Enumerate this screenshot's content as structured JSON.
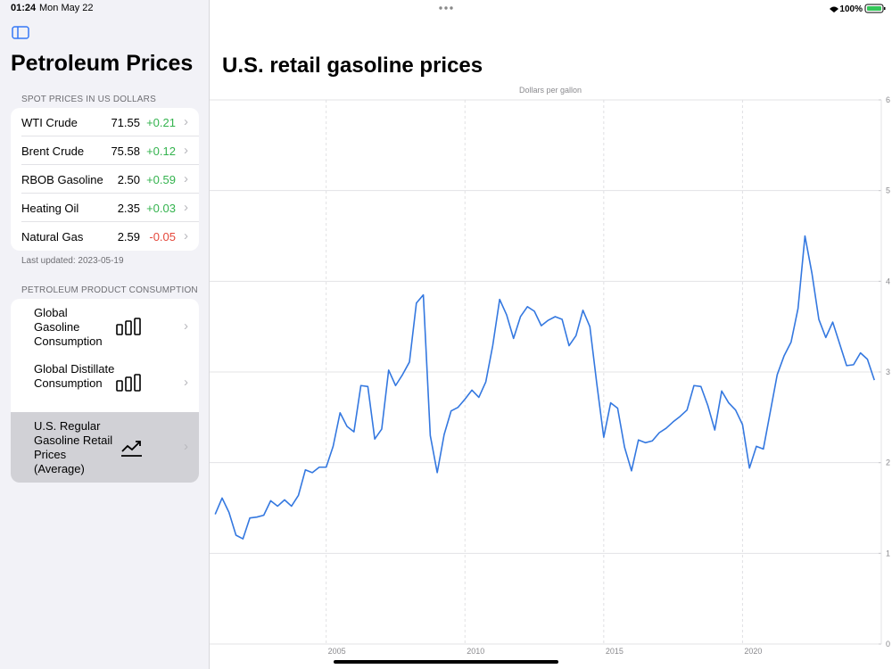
{
  "status_bar": {
    "time": "01:24",
    "date": "Mon May 22",
    "battery": "100%"
  },
  "sidebar": {
    "title": "Petroleum Prices",
    "spot_header": "SPOT PRICES IN US DOLLARS",
    "spot_prices": [
      {
        "name": "WTI Crude",
        "price": "71.55",
        "change": "+0.21"
      },
      {
        "name": "Brent Crude",
        "price": "75.58",
        "change": "+0.12"
      },
      {
        "name": "RBOB Gasoline",
        "price": "2.50",
        "change": "+0.59"
      },
      {
        "name": "Heating Oil",
        "price": "2.35",
        "change": "+0.03"
      },
      {
        "name": "Natural Gas",
        "price": "2.59",
        "change": "-0.05"
      }
    ],
    "last_updated": "Last updated: 2023-05-19",
    "consumption_header": "PETROLEUM PRODUCT CONSUMPTION",
    "consumption_items": [
      {
        "label": "Global Gasoline Consumption"
      },
      {
        "label": "Global Distillate Consumption"
      },
      {
        "label": "U.S. Regular Gasoline Retail Prices (Average)"
      }
    ]
  },
  "chart_data": {
    "type": "line",
    "title": "U.S. retail gasoline prices",
    "y_label": "Dollars per gallon",
    "color": "#3478e0",
    "grid": true,
    "xlim": [
      2000.8,
      2025
    ],
    "xticks": [
      2005,
      2010,
      2015,
      2020
    ],
    "ylim": [
      0,
      6
    ],
    "yticks": [
      0,
      1,
      2,
      3,
      4,
      5,
      6
    ],
    "x": [
      2001,
      2001.25,
      2001.5,
      2001.75,
      2002,
      2002.25,
      2002.5,
      2002.75,
      2003,
      2003.25,
      2003.5,
      2003.75,
      2004,
      2004.25,
      2004.5,
      2004.75,
      2005,
      2005.25,
      2005.5,
      2005.75,
      2006,
      2006.25,
      2006.5,
      2006.75,
      2007,
      2007.25,
      2007.5,
      2007.75,
      2008,
      2008.25,
      2008.5,
      2008.75,
      2009,
      2009.25,
      2009.5,
      2009.75,
      2010,
      2010.25,
      2010.5,
      2010.75,
      2011,
      2011.25,
      2011.5,
      2011.75,
      2012,
      2012.25,
      2012.5,
      2012.75,
      2013,
      2013.25,
      2013.5,
      2013.75,
      2014,
      2014.25,
      2014.5,
      2014.75,
      2015,
      2015.25,
      2015.5,
      2015.75,
      2016,
      2016.25,
      2016.5,
      2016.75,
      2017,
      2017.25,
      2017.5,
      2017.75,
      2018,
      2018.25,
      2018.5,
      2018.75,
      2019,
      2019.25,
      2019.5,
      2019.75,
      2020,
      2020.25,
      2020.5,
      2020.75,
      2021,
      2021.25,
      2021.5,
      2021.75,
      2022,
      2022.25,
      2022.5,
      2022.75,
      2023,
      2023.25,
      2023.5,
      2023.75,
      2024,
      2024.25,
      2024.5,
      2024.75
    ],
    "values": [
      1.43,
      1.61,
      1.45,
      1.2,
      1.16,
      1.39,
      1.4,
      1.42,
      1.58,
      1.52,
      1.59,
      1.52,
      1.64,
      1.92,
      1.89,
      1.95,
      1.95,
      2.18,
      2.55,
      2.4,
      2.34,
      2.85,
      2.84,
      2.26,
      2.37,
      3.02,
      2.85,
      2.97,
      3.11,
      3.76,
      3.85,
      2.3,
      1.89,
      2.31,
      2.57,
      2.61,
      2.7,
      2.8,
      2.72,
      2.89,
      3.29,
      3.8,
      3.63,
      3.37,
      3.61,
      3.72,
      3.67,
      3.51,
      3.57,
      3.61,
      3.58,
      3.29,
      3.4,
      3.68,
      3.5,
      2.87,
      2.28,
      2.66,
      2.6,
      2.17,
      1.91,
      2.25,
      2.22,
      2.24,
      2.33,
      2.38,
      2.45,
      2.51,
      2.58,
      2.85,
      2.84,
      2.63,
      2.36,
      2.79,
      2.66,
      2.58,
      2.42,
      1.94,
      2.18,
      2.15,
      2.56,
      2.97,
      3.18,
      3.33,
      3.7,
      4.5,
      4.09,
      3.58,
      3.38,
      3.55,
      3.31,
      3.07,
      3.08,
      3.21,
      3.14,
      2.91
    ]
  }
}
